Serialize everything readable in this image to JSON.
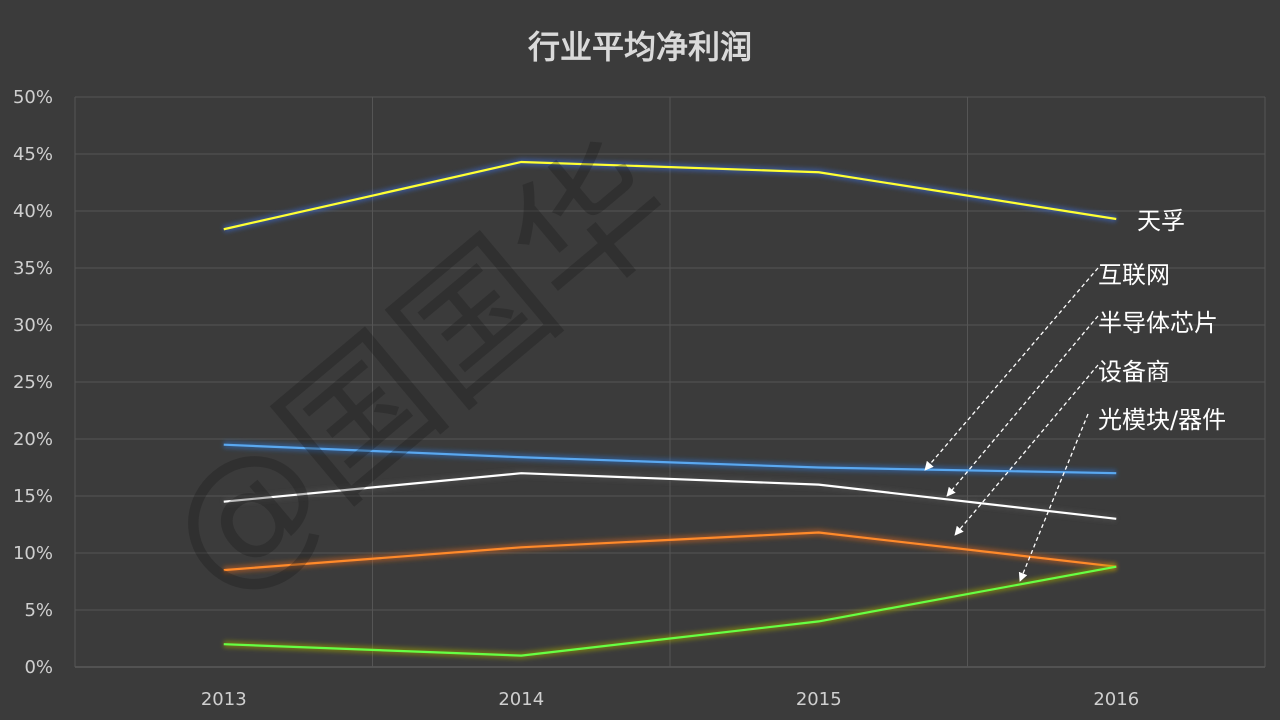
{
  "chart_data": {
    "type": "line",
    "title": "行业平均净利润",
    "categories": [
      "2013",
      "2014",
      "2015",
      "2016"
    ],
    "ylim": [
      0,
      50
    ],
    "yticks": [
      "0%",
      "5%",
      "10%",
      "15%",
      "20%",
      "25%",
      "30%",
      "35%",
      "40%",
      "45%",
      "50%"
    ],
    "grid": true,
    "series": [
      {
        "name": "天孚",
        "values": [
          38.4,
          44.3,
          43.4,
          39.3
        ],
        "color": "#ffff33",
        "glow": "#3a6ad0"
      },
      {
        "name": "互联网",
        "values": [
          19.5,
          18.4,
          17.5,
          17.0
        ],
        "color": "#5aa8f0",
        "glow": "#3070c0"
      },
      {
        "name": "半导体芯片",
        "values": [
          14.5,
          17.0,
          16.0,
          13.0
        ],
        "color": "#ffffff",
        "glow": "#505050"
      },
      {
        "name": "设备商",
        "values": [
          8.5,
          10.5,
          11.8,
          8.8
        ],
        "color": "#ff8a2a",
        "glow": "#c86020"
      },
      {
        "name": "光模块/器件",
        "values": [
          2.0,
          1.0,
          4.0,
          8.8
        ],
        "color": "#66ff44",
        "glow": "#9aa000"
      }
    ]
  },
  "watermark": "@国国华"
}
